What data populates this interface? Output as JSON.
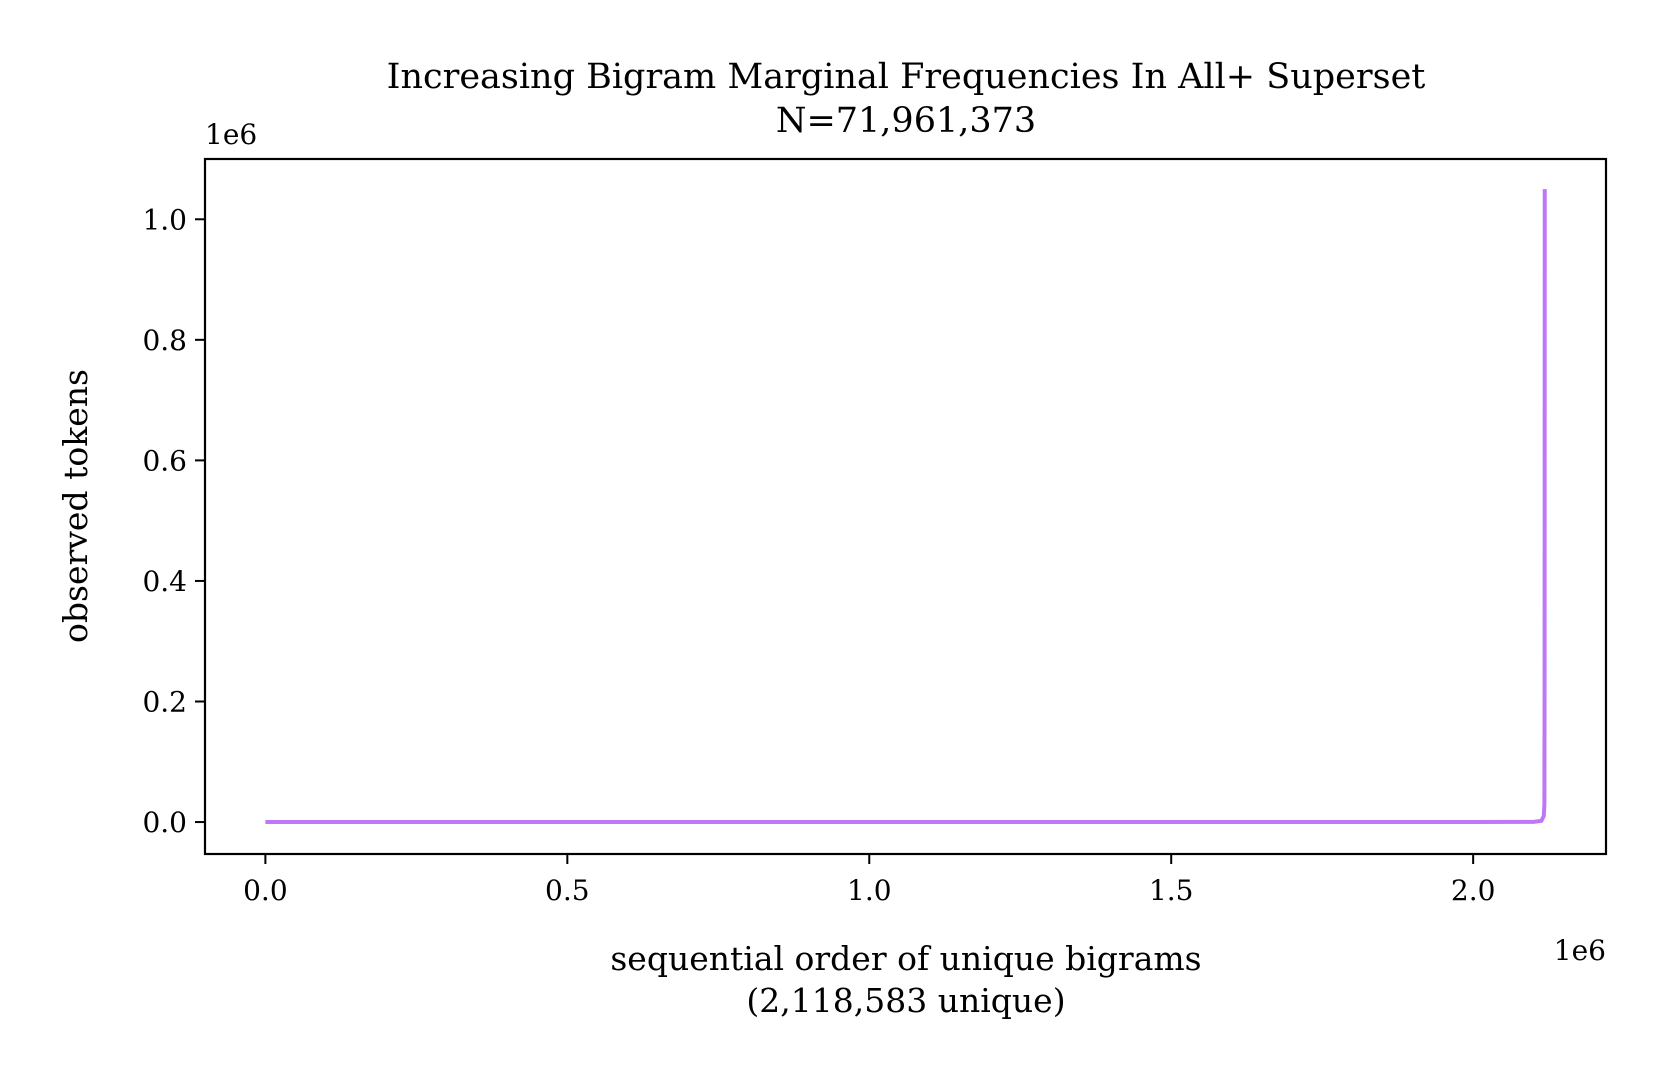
{
  "chart_data": {
    "type": "line",
    "title": "Increasing Bigram Marginal Frequencies In All+ Superset",
    "subtitle": "N=71,961,373",
    "xlabel": "sequential order of unique bigrams",
    "xlabel_sub": "(2,118,583 unique)",
    "ylabel": "observed tokens",
    "x_offset_label": "1e6",
    "y_offset_label": "1e6",
    "xlim": [
      -0.1,
      2.22
    ],
    "ylim": [
      -0.053,
      1.1
    ],
    "x_ticks": [
      0.0,
      0.5,
      1.0,
      1.5,
      2.0
    ],
    "x_tick_labels": [
      "0.0",
      "0.5",
      "1.0",
      "1.5",
      "2.0"
    ],
    "y_ticks": [
      0.0,
      0.2,
      0.4,
      0.6,
      0.8,
      1.0
    ],
    "y_tick_labels": [
      "0.0",
      "0.2",
      "0.4",
      "0.6",
      "0.8",
      "1.0"
    ],
    "grid": false,
    "series": [
      {
        "color": "#bf77f6",
        "x": [
          0.0,
          0.5,
          1.0,
          1.5,
          2.0,
          2.1,
          2.113,
          2.117,
          2.118,
          2.1183,
          2.11858
        ],
        "y": [
          1e-05,
          1e-05,
          1e-05,
          2e-05,
          5e-05,
          0.0003,
          0.002,
          0.01,
          0.03,
          0.25,
          1.05
        ]
      }
    ]
  }
}
